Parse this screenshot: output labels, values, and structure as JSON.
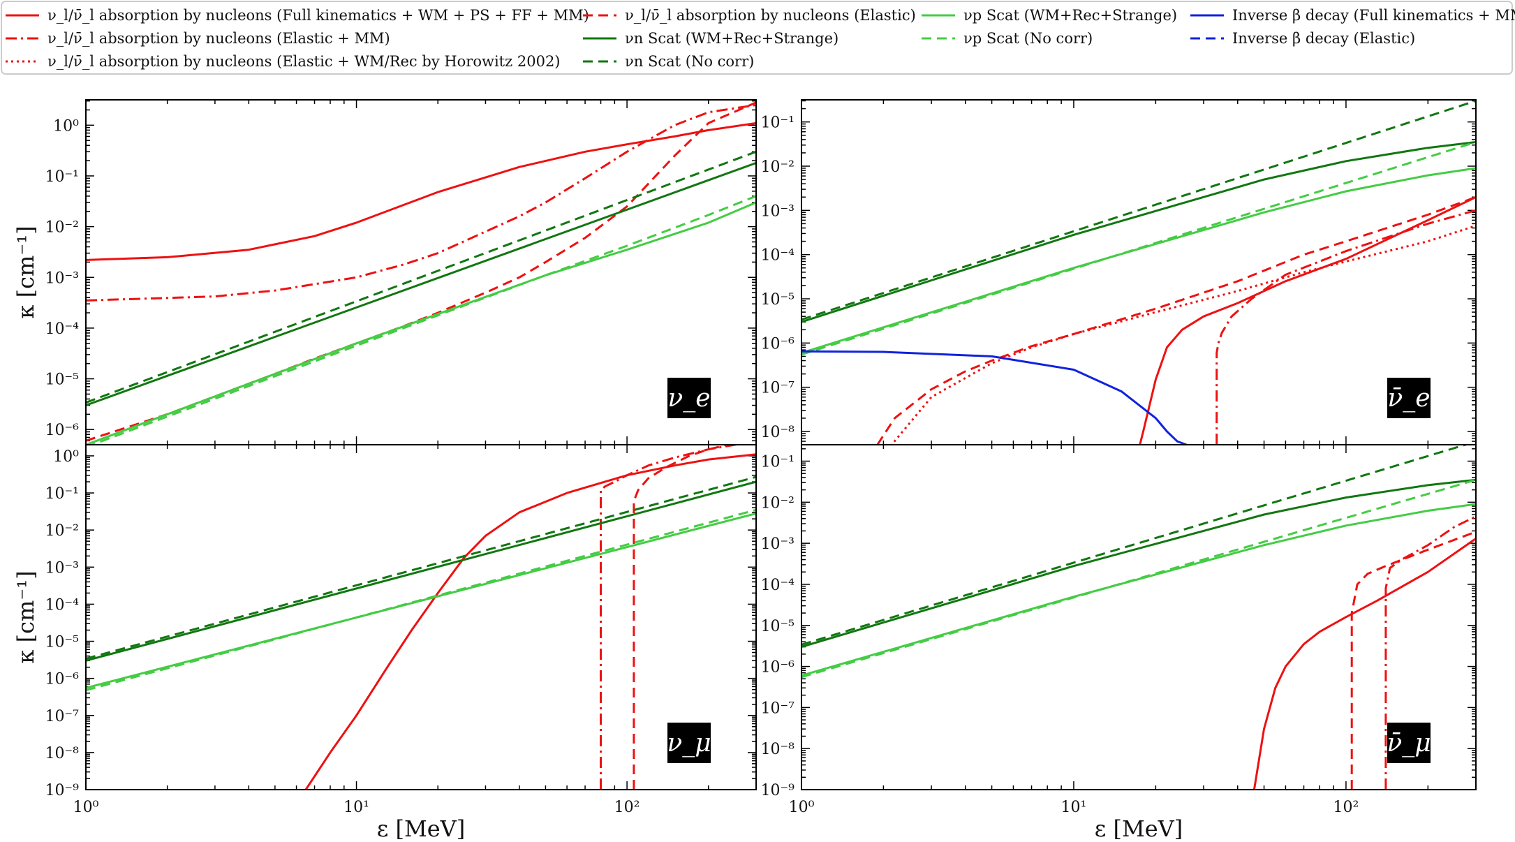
{
  "legend": {
    "entries": [
      {
        "key": "abs_full",
        "label": "ν_l/ν̄_l absorption by nucleons (Full kinematics + WM + PS + FF + MM)",
        "color": "#ee1111",
        "dash": "solid"
      },
      {
        "key": "abs_elmm",
        "label": "ν_l/ν̄_l absorption by nucleons (Elastic + MM)",
        "color": "#ee1111",
        "dash": "dashdot"
      },
      {
        "key": "abs_horo",
        "label": "ν_l/ν̄_l absorption by nucleons (Elastic + WM/Rec by Horowitz 2002)",
        "color": "#ee1111",
        "dash": "dotted"
      },
      {
        "key": "abs_el",
        "label": "ν_l/ν̄_l absorption by nucleons (Elastic)",
        "color": "#ee1111",
        "dash": "dashed"
      },
      {
        "key": "nn_full",
        "label": "νn Scat (WM+Rec+Strange)",
        "color": "#117711",
        "dash": "solid"
      },
      {
        "key": "nn_nc",
        "label": "νn Scat (No corr)",
        "color": "#117711",
        "dash": "dashed"
      },
      {
        "key": "np_full",
        "label": "νp Scat (WM+Rec+Strange)",
        "color": "#44cc44",
        "dash": "solid"
      },
      {
        "key": "np_nc",
        "label": "νp Scat (No corr)",
        "color": "#44cc44",
        "dash": "dashed"
      },
      {
        "key": "ib_full",
        "label": "Inverse β decay (Full kinematics + MM)",
        "color": "#1122dd",
        "dash": "solid"
      },
      {
        "key": "ib_el",
        "label": "Inverse β decay (Elastic)",
        "color": "#1122dd",
        "dash": "dashed"
      }
    ]
  },
  "chart_data": [
    {
      "type": "line",
      "panel": "nu_e",
      "label": "ν_e",
      "xlabel": "",
      "ylabel": "κ [cm⁻¹]",
      "xscale": "log",
      "yscale": "log",
      "xlim": [
        1,
        300
      ],
      "ylim_log10": [
        -6.3,
        0.5
      ],
      "yticks": [
        "10⁰",
        "10⁻¹",
        "10⁻²",
        "10⁻³",
        "10⁻⁴",
        "10⁻⁵",
        "10⁻⁶"
      ],
      "series": [
        {
          "key": "abs_full",
          "x": [
            1,
            2,
            4,
            7,
            10,
            20,
            40,
            70,
            100,
            150,
            200,
            300
          ],
          "y": [
            0.0022,
            0.0025,
            0.0035,
            0.0065,
            0.012,
            0.048,
            0.15,
            0.3,
            0.42,
            0.6,
            0.8,
            1.1
          ]
        },
        {
          "key": "abs_elmm",
          "x": [
            1,
            3,
            5,
            10,
            15,
            20,
            30,
            40,
            50,
            70,
            100,
            150,
            200,
            300
          ],
          "y": [
            0.00035,
            0.00042,
            0.00055,
            0.001,
            0.0018,
            0.003,
            0.008,
            0.016,
            0.03,
            0.09,
            0.3,
            1.0,
            1.8,
            2.5
          ]
        },
        {
          "key": "abs_el",
          "x": [
            1,
            2,
            3,
            5,
            7,
            10,
            15,
            20,
            30,
            40,
            50,
            70,
            100,
            150,
            200,
            300
          ],
          "y": [
            6e-07,
            2e-06,
            4.5e-06,
            1.25e-05,
            2.5e-05,
            5e-05,
            0.00011,
            0.0002,
            0.0005,
            0.001,
            0.002,
            0.006,
            0.025,
            0.25,
            1.1,
            2.8
          ]
        },
        {
          "key": "nn_full",
          "x": [
            1,
            300
          ],
          "y": [
            3e-06,
            0.18
          ]
        },
        {
          "key": "nn_nc",
          "x": [
            1,
            300
          ],
          "y": [
            3.4e-06,
            0.3
          ]
        },
        {
          "key": "np_full",
          "x": [
            1,
            10,
            50,
            100,
            200,
            300
          ],
          "y": [
            5e-07,
            5e-05,
            0.0011,
            0.0035,
            0.012,
            0.03
          ]
        },
        {
          "key": "np_nc",
          "x": [
            1,
            10,
            50,
            100,
            200,
            300
          ],
          "y": [
            4.5e-07,
            4.5e-05,
            0.0011,
            0.0042,
            0.017,
            0.04
          ]
        }
      ]
    },
    {
      "type": "line",
      "panel": "nubar_e",
      "label": "ν̄_e",
      "xlabel": "",
      "ylabel": "",
      "xscale": "log",
      "yscale": "log",
      "xlim": [
        1,
        300
      ],
      "ylim_log10": [
        -8.3,
        -0.5
      ],
      "yticks": [
        "10⁻¹",
        "10⁻²",
        "10⁻³",
        "10⁻⁴",
        "10⁻⁵",
        "10⁻⁶",
        "10⁻⁷",
        "10⁻⁸"
      ],
      "series": [
        {
          "key": "nn_full",
          "x": [
            1,
            10,
            50,
            100,
            200,
            300
          ],
          "y": [
            3e-06,
            0.00028,
            0.005,
            0.013,
            0.026,
            0.035
          ]
        },
        {
          "key": "nn_nc",
          "x": [
            1,
            300
          ],
          "y": [
            3.4e-06,
            0.3
          ]
        },
        {
          "key": "np_full",
          "x": [
            1,
            10,
            50,
            100,
            200,
            300
          ],
          "y": [
            6e-07,
            5e-05,
            0.0009,
            0.0027,
            0.0062,
            0.009
          ]
        },
        {
          "key": "np_nc",
          "x": [
            1,
            300
          ],
          "y": [
            5.5e-07,
            0.035
          ]
        },
        {
          "key": "abs_horo",
          "x": [
            2,
            3,
            5,
            7,
            10,
            20,
            40,
            70,
            100,
            200,
            300
          ],
          "y": [
            3e-09,
            6e-08,
            3.5e-07,
            8e-07,
            1.6e-06,
            5e-06,
            1.5e-05,
            4e-05,
            7e-05,
            0.0002,
            0.00045
          ]
        },
        {
          "key": "abs_el",
          "x": [
            1.9,
            2.2,
            3,
            4,
            5,
            7,
            10,
            20,
            40,
            70,
            100,
            200,
            300
          ],
          "y": [
            5e-09,
            2e-08,
            9e-08,
            2.3e-07,
            4e-07,
            8.5e-07,
            1.6e-06,
            6e-06,
            2.5e-05,
            0.0001,
            0.0002,
            0.0008,
            0.002
          ]
        },
        {
          "key": "abs_full",
          "x": [
            17.5,
            18,
            20,
            22,
            25,
            30,
            40,
            60,
            100,
            200,
            300
          ],
          "y": [
            5e-09,
            1e-08,
            1.5e-07,
            8e-07,
            2e-06,
            4e-06,
            8e-06,
            2.5e-05,
            8e-05,
            0.0006,
            0.002
          ]
        },
        {
          "key": "abs_elmm",
          "x": [
            33.5,
            33.5,
            34,
            35,
            38,
            45,
            60,
            100,
            200,
            300
          ],
          "y": [
            5e-09,
            6e-07,
            1e-06,
            1.7e-06,
            4e-06,
            1e-05,
            3.5e-05,
            0.00012,
            0.0005,
            0.001
          ]
        },
        {
          "key": "ib_full",
          "x": [
            1,
            2,
            5,
            10,
            15,
            20,
            22,
            24,
            26
          ],
          "y": [
            6.5e-07,
            6.3e-07,
            5e-07,
            2.5e-07,
            8e-08,
            2e-08,
            1e-08,
            6e-09,
            5e-09
          ]
        }
      ]
    },
    {
      "type": "line",
      "panel": "nu_mu",
      "label": "ν_μ",
      "xlabel": "ε [MeV]",
      "ylabel": "κ [cm⁻¹]",
      "xscale": "log",
      "yscale": "log",
      "xlim": [
        1,
        300
      ],
      "ylim_log10": [
        -9,
        0.3
      ],
      "yticks": [
        "10⁰",
        "10⁻¹",
        "10⁻²",
        "10⁻³",
        "10⁻⁴",
        "10⁻⁵",
        "10⁻⁶",
        "10⁻⁷",
        "10⁻⁸",
        "10⁻⁹"
      ],
      "xticks": [
        "10⁰",
        "10¹",
        "10²"
      ],
      "series": [
        {
          "key": "abs_full",
          "x": [
            6.5,
            8,
            10,
            13,
            16,
            20,
            25,
            30,
            40,
            60,
            100,
            150,
            200,
            300
          ],
          "y": [
            1e-09,
            1e-08,
            1e-07,
            2e-06,
            2e-05,
            0.0002,
            0.0018,
            0.007,
            0.03,
            0.1,
            0.3,
            0.55,
            0.8,
            1.1
          ]
        },
        {
          "key": "abs_elmm",
          "x": [
            80,
            80,
            83,
            90,
            100,
            120,
            150,
            200,
            300
          ],
          "y": [
            1e-09,
            0.12,
            0.15,
            0.2,
            0.3,
            0.55,
            0.9,
            1.5,
            2.5
          ]
        },
        {
          "key": "abs_el",
          "x": [
            106,
            106,
            110,
            120,
            140,
            170,
            200,
            250,
            300
          ],
          "y": [
            1e-09,
            0.06,
            0.12,
            0.25,
            0.5,
            1.0,
            1.5,
            2.2,
            3.0
          ]
        },
        {
          "key": "nn_full",
          "x": [
            1,
            300
          ],
          "y": [
            3e-06,
            0.2
          ]
        },
        {
          "key": "nn_nc",
          "x": [
            1,
            300
          ],
          "y": [
            3.4e-06,
            0.27
          ]
        },
        {
          "key": "np_full",
          "x": [
            1,
            300
          ],
          "y": [
            5.5e-07,
            0.028
          ]
        },
        {
          "key": "np_nc",
          "x": [
            1,
            300
          ],
          "y": [
            4.8e-07,
            0.035
          ]
        }
      ]
    },
    {
      "type": "line",
      "panel": "nubar_mu",
      "label": "ν̄_μ",
      "xlabel": "ε [MeV]",
      "ylabel": "",
      "xscale": "log",
      "yscale": "log",
      "xlim": [
        1,
        300
      ],
      "ylim_log10": [
        -9,
        -0.6
      ],
      "yticks": [
        "10⁻¹",
        "10⁻²",
        "10⁻³",
        "10⁻⁴",
        "10⁻⁵",
        "10⁻⁶",
        "10⁻⁷",
        "10⁻⁸",
        "10⁻⁹"
      ],
      "xticks": [
        "10⁰",
        "10¹",
        "10²"
      ],
      "series": [
        {
          "key": "nn_full",
          "x": [
            1,
            10,
            50,
            100,
            200,
            300
          ],
          "y": [
            3e-06,
            0.00028,
            0.005,
            0.013,
            0.026,
            0.035
          ]
        },
        {
          "key": "nn_nc",
          "x": [
            1,
            300
          ],
          "y": [
            3.4e-06,
            0.3
          ]
        },
        {
          "key": "np_full",
          "x": [
            1,
            10,
            50,
            100,
            200,
            300
          ],
          "y": [
            6e-07,
            5e-05,
            0.0009,
            0.0027,
            0.0062,
            0.009
          ]
        },
        {
          "key": "np_nc",
          "x": [
            1,
            300
          ],
          "y": [
            5.5e-07,
            0.035
          ]
        },
        {
          "key": "abs_full",
          "x": [
            46,
            50,
            55,
            60,
            70,
            80,
            100,
            130,
            200,
            300
          ],
          "y": [
            1e-09,
            3e-08,
            3e-07,
            1e-06,
            3.5e-06,
            7e-06,
            1.6e-05,
            4e-05,
            0.0002,
            0.0013
          ]
        },
        {
          "key": "abs_el",
          "x": [
            105,
            105,
            110,
            120,
            140,
            200,
            300
          ],
          "y": [
            1e-09,
            2e-05,
            0.0001,
            0.00018,
            0.00028,
            0.0007,
            0.0019
          ]
        },
        {
          "key": "abs_elmm",
          "x": [
            140,
            140,
            145,
            160,
            200,
            250,
            300
          ],
          "y": [
            1e-09,
            8e-05,
            0.00025,
            0.0004,
            0.0009,
            0.0025,
            0.0045
          ]
        }
      ]
    }
  ]
}
